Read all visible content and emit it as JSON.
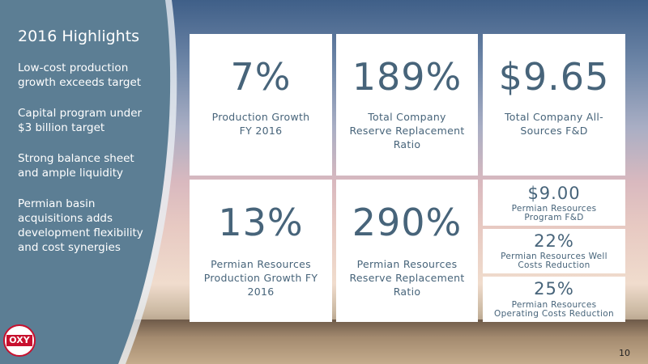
{
  "sidebar": {
    "title": "2016 Highlights",
    "bullets": [
      "Low-cost production growth exceeds target",
      "Capital program under $3 billion target",
      "Strong balance sheet and ample liquidity",
      "Permian basin acquisitions adds development flexibility and cost synergies"
    ]
  },
  "tiles": [
    {
      "value": "7%",
      "label": "Production Growth FY 2016"
    },
    {
      "value": "189%",
      "label": "Total Company Reserve Replacement Ratio"
    },
    {
      "value": "$9.65",
      "label": "Total Company All-Sources F&D"
    },
    {
      "value": "13%",
      "label": "Permian Resources Production Growth FY 2016"
    },
    {
      "value": "290%",
      "label": "Permian Resources Reserve Replacement Ratio"
    }
  ],
  "small_tiles": [
    {
      "value": "$9.00",
      "label": "Permian Resources Program F&D"
    },
    {
      "value": "22%",
      "label": "Permian Resources Well Costs Reduction"
    },
    {
      "value": "25%",
      "label": "Permian Resources Operating Costs Reduction"
    }
  ],
  "logo": "OXY",
  "page_number": "10"
}
